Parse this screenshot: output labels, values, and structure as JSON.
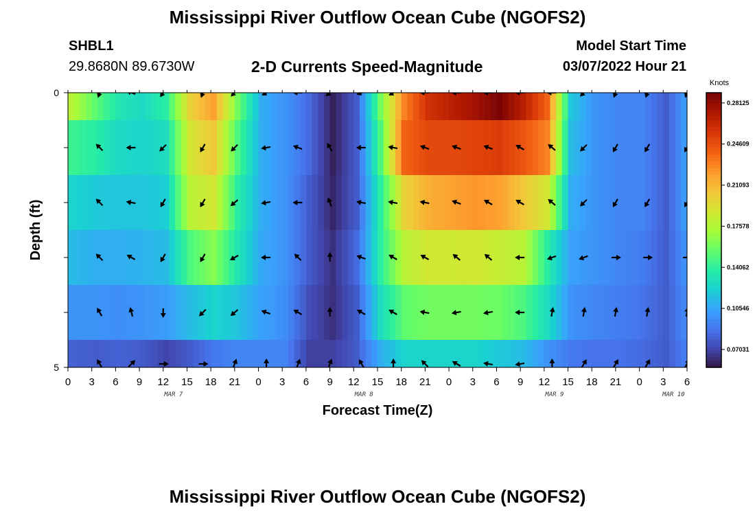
{
  "header": {
    "title": "Mississippi River Outflow Ocean Cube (NGOFS2)",
    "station": "SHBL1",
    "coords": "29.8680N  89.6730W",
    "subtitle": "2-D Currents Speed-Magnitude",
    "model_start_label": "Model Start Time",
    "model_start_value": "03/07/2022 Hour 21"
  },
  "footer": {
    "title": "Mississippi River Outflow Ocean Cube (NGOFS2)"
  },
  "chart_data": {
    "type": "heatmap",
    "xlabel": "Forecast Time(Z)",
    "ylabel": "Depth (ft)",
    "y_ticks": [
      "0",
      "5"
    ],
    "ylim": [
      0,
      5
    ],
    "x_tick_labels": [
      "0",
      "3",
      "6",
      "9",
      "12",
      "15",
      "18",
      "21",
      "0",
      "3",
      "6",
      "9",
      "12",
      "15",
      "18",
      "21",
      "0",
      "3",
      "6",
      "9",
      "12",
      "15",
      "18",
      "21",
      "0",
      "3",
      "6"
    ],
    "date_labels": [
      {
        "label": "MAR 7",
        "tick_index": 4
      },
      {
        "label": "MAR 8",
        "tick_index": 12
      },
      {
        "label": "MAR 9",
        "tick_index": 20
      },
      {
        "label": "MAR 10",
        "tick_index": 25
      }
    ],
    "colorbar": {
      "units": "Knots",
      "min": 0.055,
      "max": 0.29,
      "ticks": [
        "0.28125",
        "0.24609",
        "0.21093",
        "0.17578",
        "0.14062",
        "0.10546",
        "0.07031"
      ],
      "tick_values": [
        0.28125,
        0.24609,
        0.21093,
        0.17578,
        0.14062,
        0.10546,
        0.07031
      ],
      "colors": [
        "#30123b",
        "#4145ab",
        "#4675ed",
        "#39a2fc",
        "#1bcfd4",
        "#24eca6",
        "#61fc6c",
        "#a4fc3b",
        "#d1e834",
        "#f3c63a",
        "#fe9b2d",
        "#f36315",
        "#d93806",
        "#b11901",
        "#7a0403"
      ]
    },
    "time_hours": [
      0,
      3,
      6,
      9,
      12,
      15,
      18,
      21,
      24,
      27,
      30,
      33,
      36,
      39,
      42,
      45,
      48,
      51,
      54,
      57,
      60,
      63,
      66,
      69,
      72,
      75,
      78
    ],
    "depth_layers": [
      0,
      1,
      2,
      3,
      4,
      5
    ],
    "speed_knots": [
      [
        0.18,
        0.155,
        0.135,
        0.128,
        0.14,
        0.2,
        0.22,
        0.16,
        0.11,
        0.1,
        0.085,
        0.06,
        0.08,
        0.16,
        0.23,
        0.26,
        0.27,
        0.278,
        0.29,
        0.27,
        0.24,
        0.12,
        0.1,
        0.095,
        0.095,
        0.08,
        0.11
      ],
      [
        0.145,
        0.14,
        0.128,
        0.125,
        0.13,
        0.19,
        0.205,
        0.15,
        0.11,
        0.1,
        0.085,
        0.06,
        0.08,
        0.15,
        0.24,
        0.25,
        0.25,
        0.252,
        0.255,
        0.245,
        0.23,
        0.115,
        0.1,
        0.095,
        0.095,
        0.08,
        0.11
      ],
      [
        0.125,
        0.12,
        0.118,
        0.118,
        0.122,
        0.18,
        0.19,
        0.14,
        0.11,
        0.1,
        0.08,
        0.062,
        0.08,
        0.14,
        0.2,
        0.215,
        0.22,
        0.225,
        0.22,
        0.205,
        0.19,
        0.11,
        0.1,
        0.095,
        0.095,
        0.08,
        0.11
      ],
      [
        0.115,
        0.11,
        0.11,
        0.112,
        0.115,
        0.15,
        0.165,
        0.135,
        0.108,
        0.1,
        0.08,
        0.065,
        0.085,
        0.14,
        0.18,
        0.19,
        0.188,
        0.19,
        0.185,
        0.18,
        0.14,
        0.105,
        0.1,
        0.095,
        0.092,
        0.08,
        0.105
      ],
      [
        0.1,
        0.1,
        0.098,
        0.1,
        0.103,
        0.115,
        0.125,
        0.118,
        0.105,
        0.098,
        0.075,
        0.065,
        0.08,
        0.13,
        0.155,
        0.16,
        0.16,
        0.16,
        0.158,
        0.15,
        0.13,
        0.1,
        0.095,
        0.092,
        0.088,
        0.08,
        0.1
      ],
      [
        0.082,
        0.08,
        0.082,
        0.08,
        0.072,
        0.08,
        0.09,
        0.095,
        0.095,
        0.095,
        0.07,
        0.07,
        0.08,
        0.11,
        0.125,
        0.125,
        0.125,
        0.125,
        0.12,
        0.115,
        0.1,
        0.09,
        0.088,
        0.088,
        0.085,
        0.08,
        0.095
      ]
    ],
    "arrow_times_hours": [
      4,
      8,
      12,
      17,
      21,
      25,
      29,
      33,
      37,
      41,
      45,
      49,
      53,
      57,
      61,
      65,
      69,
      73,
      78
    ],
    "arrow_directions_deg": [
      [
        200,
        290,
        215,
        200,
        225,
        240,
        270,
        230,
        250,
        240,
        270,
        270,
        270,
        270,
        270,
        225,
        200,
        200,
        200
      ],
      [
        315,
        270,
        225,
        210,
        225,
        260,
        290,
        330,
        270,
        280,
        290,
        290,
        290,
        300,
        310,
        225,
        210,
        210,
        210
      ],
      [
        315,
        280,
        210,
        210,
        230,
        260,
        270,
        340,
        280,
        280,
        280,
        290,
        300,
        300,
        310,
        225,
        210,
        210,
        210
      ],
      [
        315,
        300,
        210,
        210,
        240,
        270,
        315,
        0,
        290,
        300,
        300,
        310,
        310,
        270,
        250,
        250,
        90,
        90,
        90
      ],
      [
        330,
        345,
        180,
        225,
        230,
        290,
        300,
        0,
        300,
        300,
        280,
        260,
        260,
        270,
        10,
        10,
        10,
        10,
        10
      ],
      [
        330,
        45,
        90,
        90,
        20,
        0,
        20,
        20,
        330,
        0,
        315,
        300,
        280,
        260,
        0,
        30,
        30,
        30,
        30
      ]
    ]
  }
}
